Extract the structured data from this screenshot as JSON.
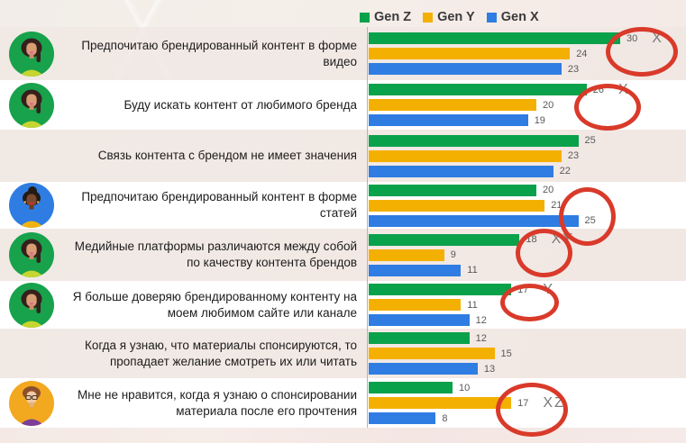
{
  "chart_data": {
    "type": "bar",
    "orientation": "horizontal",
    "legend_position": "top",
    "legend": [
      {
        "label": "Gen Z",
        "color": "#0aa14b"
      },
      {
        "label": "Gen Y",
        "color": "#f4b000"
      },
      {
        "label": "Gen X",
        "color": "#2f7de2"
      }
    ],
    "highlight_color": "#d93a2a",
    "value_range": [
      0,
      30
    ],
    "rows": [
      {
        "label": "Предпочитаю брендированный контент в форме видео",
        "avatar": "girl-green-avatar-icon",
        "values": [
          30,
          24,
          23
        ],
        "annotation": "X",
        "circled_series": "Gen Z"
      },
      {
        "label": "Буду искать контент от любимого бренда",
        "avatar": "girl-green-avatar-icon",
        "values": [
          26,
          20,
          19
        ],
        "annotation": "X",
        "circled_series": "Gen Z"
      },
      {
        "label": "Связь контента с брендом не имеет значения",
        "avatar": "none",
        "values": [
          25,
          23,
          22
        ],
        "annotation": "",
        "circled_series": ""
      },
      {
        "label": "Предпочитаю брендированный контент в форме статей",
        "avatar": "woman-blue-avatar-icon",
        "values": [
          20,
          21,
          25
        ],
        "annotation": "",
        "circled_series": "Gen X"
      },
      {
        "label": "Медийные платформы различаются между собой по качеству контента брендов",
        "avatar": "girl-green-avatar-icon",
        "values": [
          18,
          9,
          11
        ],
        "annotation": "XY",
        "circled_series": "Gen Z"
      },
      {
        "label": "Я больше доверяю брендированному контенту на моем любимом сайте или канале",
        "avatar": "girl-green-avatar-icon",
        "values": [
          17,
          11,
          12
        ],
        "annotation": "Y",
        "circled_series": "Gen Z"
      },
      {
        "label": "Когда я узнаю, что материалы спонсируются, то пропадает желание смотреть их или читать",
        "avatar": "none",
        "values": [
          12,
          15,
          13
        ],
        "annotation": "",
        "circled_series": ""
      },
      {
        "label": "Мне не нравится, когда я узнаю о спонсировании материала после его прочтения",
        "avatar": "man-orange-avatar-icon",
        "values": [
          10,
          17,
          8
        ],
        "annotation": "XZ",
        "circled_series": "Gen Y"
      }
    ]
  }
}
